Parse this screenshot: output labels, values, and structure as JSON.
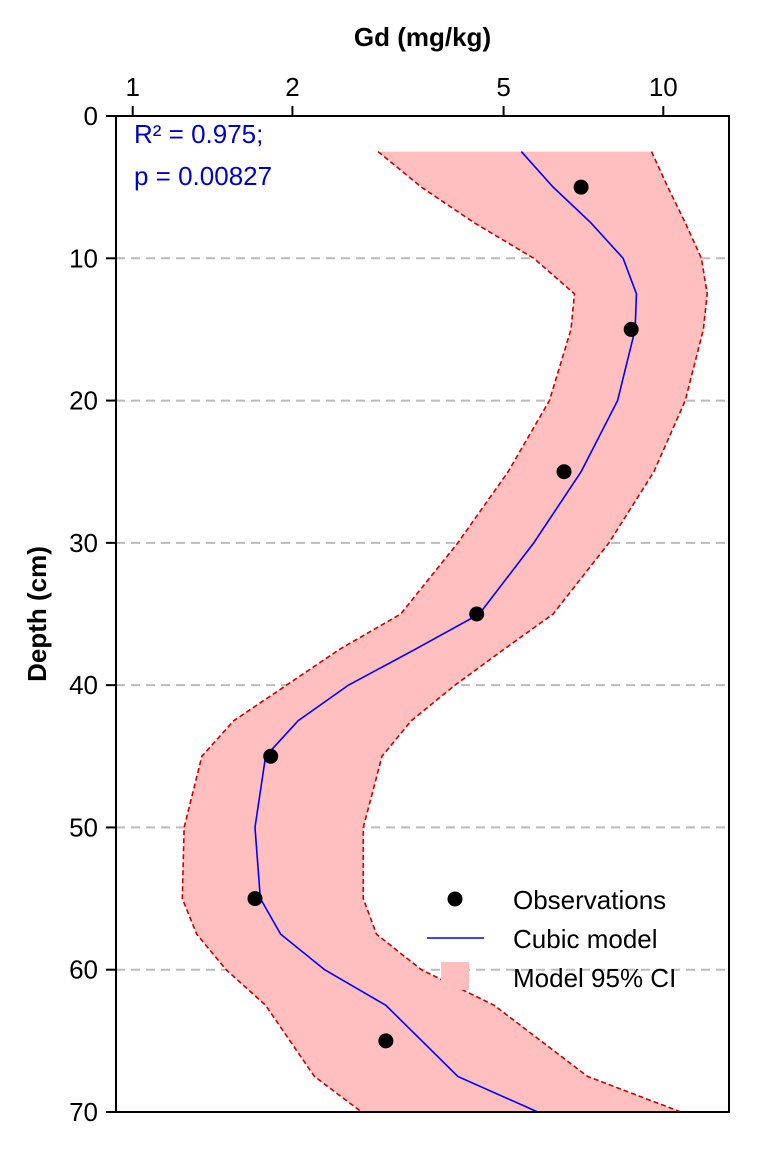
{
  "chart_data": {
    "type": "scatter",
    "xlabel": "Gd (mg/kg)",
    "ylabel": "Depth (cm)",
    "x_scale": "log",
    "x_ticks": [
      1,
      2,
      5,
      10
    ],
    "x_tick_labels": [
      "1",
      "2",
      "5",
      "10"
    ],
    "xlim": [
      0.93,
      13.3
    ],
    "y_ticks": [
      0,
      10,
      20,
      30,
      40,
      50,
      60,
      70
    ],
    "y_tick_labels": [
      "0",
      "10",
      "20",
      "30",
      "40",
      "50",
      "60",
      "70"
    ],
    "ylim": [
      0,
      70
    ],
    "y_inverted": true,
    "x_axis_position": "top",
    "grid": "horizontal dashed",
    "legend_position": "bottom-right",
    "annotation_lines": [
      "R² = 0.975;",
      "p = 0.00827"
    ],
    "annotation_color": "#0000cc",
    "colors": {
      "observations": "#000000",
      "model": "#0000ff",
      "ci_fill": "#ffbfbf",
      "ci_edge": "#cc0000",
      "grid": "#bbbbbb"
    },
    "legend": {
      "observations": "Observations",
      "model": "Cubic model",
      "ci": "Model 95% CI"
    },
    "observations": {
      "x": [
        7.0,
        8.7,
        6.5,
        4.45,
        1.82,
        1.7,
        3.0
      ],
      "y": [
        5,
        15,
        25,
        35,
        45,
        55,
        65
      ]
    },
    "model": {
      "x": [
        5.4,
        6.2,
        7.3,
        8.4,
        8.9,
        8.85,
        8.2,
        7.0,
        5.7,
        4.5,
        3.4,
        2.55,
        2.05,
        1.78,
        1.7,
        1.74,
        1.9,
        2.3,
        3.0,
        4.1,
        5.8
      ],
      "y": [
        2.5,
        5,
        7.5,
        10,
        12.5,
        15,
        20,
        25,
        30,
        35,
        37.5,
        40,
        42.5,
        45,
        50,
        55,
        57.5,
        60,
        62.5,
        67.5,
        70
      ]
    },
    "ci_lower": {
      "x": [
        2.9,
        3.5,
        4.4,
        5.7,
        6.8,
        6.7,
        6.1,
        5.1,
        4.1,
        3.2,
        2.45,
        1.95,
        1.55,
        1.35,
        1.25,
        1.24,
        1.32,
        1.5,
        1.78,
        2.2,
        2.7
      ],
      "y": [
        2.5,
        5,
        7.5,
        10,
        12.5,
        15,
        20,
        25,
        30,
        35,
        37.5,
        40,
        42.5,
        45,
        50,
        55,
        57.5,
        60,
        62.5,
        67.5,
        70
      ]
    },
    "ci_upper": {
      "x": [
        9.5,
        10.2,
        11.0,
        11.8,
        12.1,
        11.9,
        11.0,
        9.6,
        7.9,
        6.2,
        5.0,
        4.05,
        3.35,
        2.95,
        2.72,
        2.72,
        2.88,
        3.5,
        4.8,
        7.2,
        10.8
      ],
      "y": [
        2.5,
        5,
        7.5,
        10,
        12.5,
        15,
        20,
        25,
        30,
        35,
        37.5,
        40,
        42.5,
        45,
        50,
        55,
        57.5,
        60,
        62.5,
        67.5,
        70
      ]
    }
  }
}
